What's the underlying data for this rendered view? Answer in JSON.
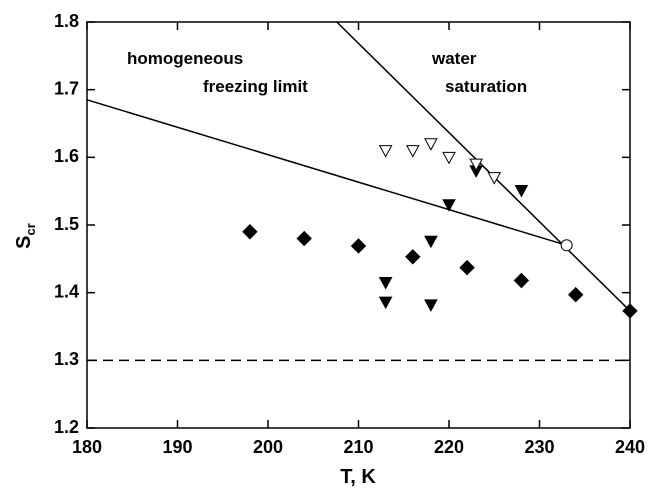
{
  "chart_data": {
    "type": "scatter",
    "xlabel": "T, K",
    "ylabel": "S",
    "ylabel_subscript": "cr",
    "xlim": [
      180,
      240
    ],
    "ylim": [
      1.2,
      1.8
    ],
    "xticks": [
      180,
      190,
      200,
      210,
      220,
      230,
      240
    ],
    "yticks": [
      1.2,
      1.3,
      1.4,
      1.5,
      1.6,
      1.7,
      1.8
    ],
    "grid": false,
    "annotations": [
      "homogeneous",
      "freezing limit",
      "water",
      "saturation"
    ],
    "series": [
      {
        "marker": "line",
        "linestyle": "solid",
        "color": "#000000",
        "x": [
          180,
          233
        ],
        "values": [
          1.685,
          1.47
        ]
      },
      {
        "marker": "line",
        "linestyle": "solid",
        "color": "#000000",
        "x": [
          207.6,
          240
        ],
        "values": [
          1.8,
          1.373
        ]
      },
      {
        "marker": "line",
        "linestyle": "dashed",
        "color": "#000000",
        "x": [
          180,
          240
        ],
        "values": [
          1.3,
          1.3
        ]
      },
      {
        "marker": "diamond",
        "color": "#000000",
        "filled": true,
        "x": [
          198,
          204,
          210,
          216,
          222,
          228,
          234,
          240
        ],
        "values": [
          1.49,
          1.48,
          1.469,
          1.453,
          1.437,
          1.418,
          1.397,
          1.373
        ]
      },
      {
        "marker": "triangle-down",
        "color": "#000000",
        "filled": true,
        "x": [
          213,
          213,
          218,
          218,
          220,
          223,
          228
        ],
        "values": [
          1.415,
          1.386,
          1.476,
          1.382,
          1.53,
          1.58,
          1.551
        ]
      },
      {
        "marker": "triangle-down",
        "color": "#000000",
        "filled": false,
        "x": [
          213,
          216,
          218,
          220,
          223,
          225
        ],
        "values": [
          1.61,
          1.61,
          1.62,
          1.6,
          1.59,
          1.57
        ]
      },
      {
        "marker": "circle",
        "color": "#000000",
        "filled": false,
        "x": [
          233
        ],
        "values": [
          1.47
        ]
      }
    ]
  }
}
